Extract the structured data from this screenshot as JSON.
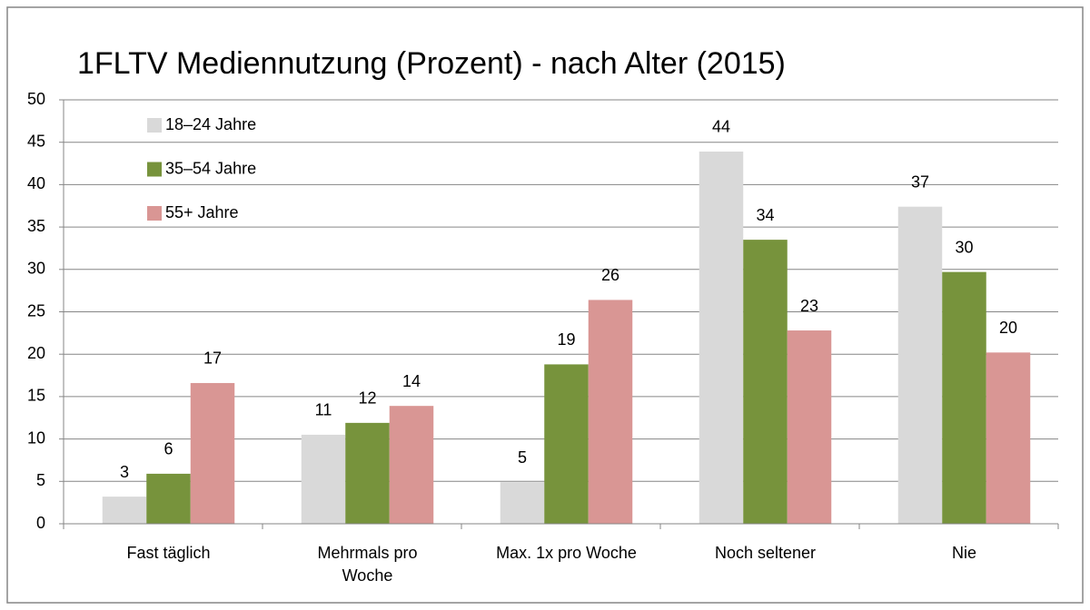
{
  "chart_data": {
    "type": "bar",
    "title": "1FLTV Mediennutzung (Prozent) - nach Alter (2015)",
    "categories": [
      "Fast täglich",
      "Mehrmals pro Woche",
      "Max. 1x pro Woche",
      "Noch seltener",
      "Nie"
    ],
    "series": [
      {
        "name": "18–24 Jahre",
        "color": "#d9d9d9",
        "values": [
          3.2,
          10.5,
          4.9,
          43.9,
          37.4
        ],
        "value_labels": [
          "3",
          "11",
          "5",
          "44",
          "37"
        ]
      },
      {
        "name": "35–54 Jahre",
        "color": "#77933c",
        "values": [
          5.9,
          11.9,
          18.8,
          33.5,
          29.7
        ],
        "value_labels": [
          "6",
          "12",
          "19",
          "34",
          "30"
        ]
      },
      {
        "name": "55+ Jahre",
        "color": "#d99694",
        "values": [
          16.6,
          13.9,
          26.4,
          22.8,
          20.2
        ],
        "value_labels": [
          "17",
          "14",
          "26",
          "23",
          "20"
        ]
      }
    ],
    "ylim": [
      0,
      50
    ],
    "yticks": [
      0,
      5,
      10,
      15,
      20,
      25,
      30,
      35,
      40,
      45,
      50
    ],
    "grid": true,
    "legend": "top-left"
  }
}
